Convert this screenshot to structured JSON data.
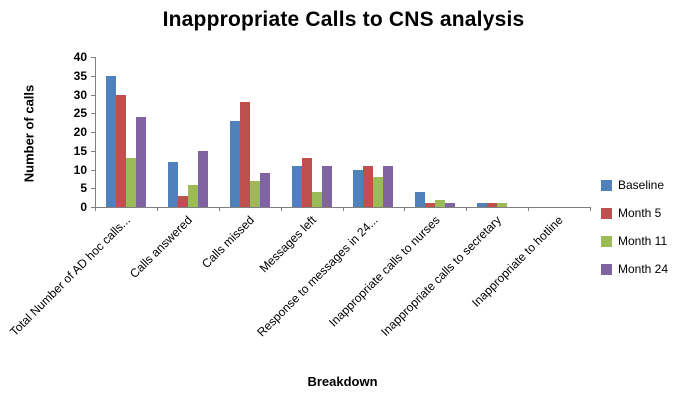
{
  "title": "Inappropriate Calls to CNS analysis",
  "chart_data": {
    "type": "bar",
    "title": "Inappropriate Calls to CNS analysis",
    "xlabel": "Breakdown",
    "ylabel": "Number of calls",
    "ylim": [
      0,
      40
    ],
    "ytick_step": 5,
    "grid": false,
    "legend_position": "right",
    "categories": [
      "Total Number of AD hoc calls...",
      "Calls answered",
      "Calls missed",
      "Messages left",
      "Response to messages in 24...",
      "Inappropriate calls to nurses",
      "Inappropriate calls to secretary",
      "Inappropriate to hotline"
    ],
    "series": [
      {
        "name": "Baseline",
        "color": "#4F81BD",
        "values": [
          35,
          12,
          23,
          11,
          10,
          4,
          1,
          0
        ]
      },
      {
        "name": "Month 5",
        "color": "#C0504D",
        "values": [
          30,
          3,
          28,
          13,
          11,
          1,
          1,
          0
        ]
      },
      {
        "name": "Month 11",
        "color": "#9BBB59",
        "values": [
          13,
          6,
          7,
          4,
          8,
          2,
          1,
          0
        ]
      },
      {
        "name": "Month 24",
        "color": "#8064A2",
        "values": [
          24,
          15,
          9,
          11,
          11,
          1,
          0,
          0
        ]
      }
    ]
  }
}
